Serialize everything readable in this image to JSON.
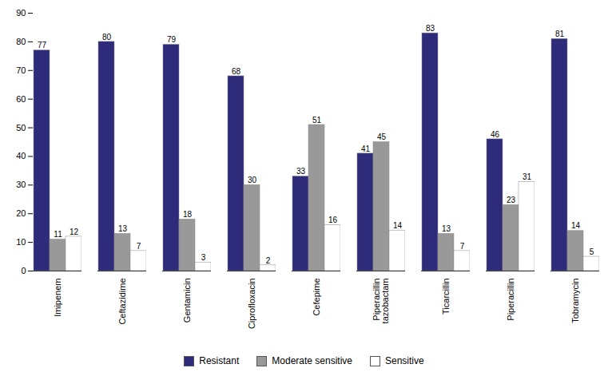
{
  "chart_data": {
    "type": "bar",
    "categories": [
      "Imipenem",
      "Ceftazidime",
      "Gentamicin",
      "Ciprofloxacin",
      "Cefepime",
      "Piperacillin\ntazobactam",
      "Ticarcillin",
      "Piperacillin",
      "Tobramycin"
    ],
    "series": [
      {
        "name": "Resistant",
        "color": "#2e2b7b",
        "values": [
          77,
          80,
          79,
          68,
          33,
          41,
          83,
          46,
          81
        ]
      },
      {
        "name": "Moderate sensitive",
        "color": "#999999",
        "values": [
          11,
          13,
          18,
          30,
          51,
          45,
          13,
          23,
          14
        ]
      },
      {
        "name": "Sensitive",
        "color": "#ffffff",
        "values": [
          12,
          7,
          3,
          2,
          16,
          14,
          7,
          31,
          5
        ]
      }
    ],
    "ylim": [
      0,
      90
    ],
    "yticks": [
      0,
      10,
      20,
      30,
      40,
      50,
      60,
      70,
      80,
      90
    ],
    "grid": false,
    "data_labels": true,
    "legend": "bottom"
  }
}
